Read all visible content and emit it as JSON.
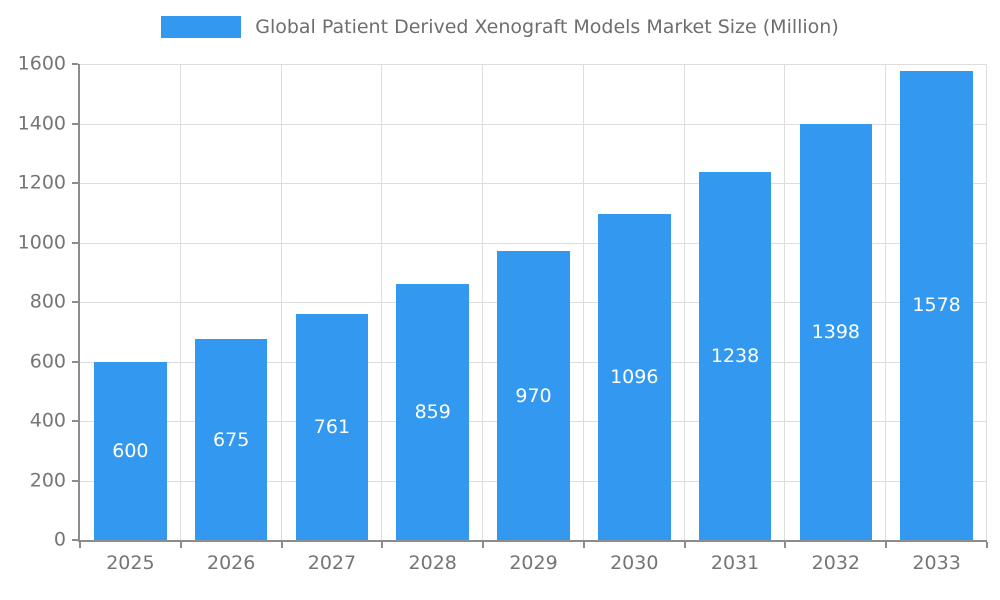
{
  "chart_data": {
    "type": "bar",
    "title": "Global Patient Derived Xenograft Models Market Size (Million)",
    "categories": [
      "2025",
      "2026",
      "2027",
      "2028",
      "2029",
      "2030",
      "2031",
      "2032",
      "2033"
    ],
    "values": [
      600,
      675,
      761,
      859,
      970,
      1096,
      1238,
      1398,
      1578
    ],
    "xlabel": "",
    "ylabel": "",
    "ylim": [
      0,
      1600
    ],
    "ytick_step": 200,
    "yticks": [
      "0",
      "200",
      "400",
      "600",
      "800",
      "1000",
      "1200",
      "1400",
      "1600"
    ],
    "grid": true,
    "legend_position": "top",
    "bar_color": "#3398f0",
    "value_label_color": "#ffffff",
    "axis_text_color": "#757575",
    "axis_line_color": "#8c8c8c",
    "grid_color": "#dddddd"
  }
}
